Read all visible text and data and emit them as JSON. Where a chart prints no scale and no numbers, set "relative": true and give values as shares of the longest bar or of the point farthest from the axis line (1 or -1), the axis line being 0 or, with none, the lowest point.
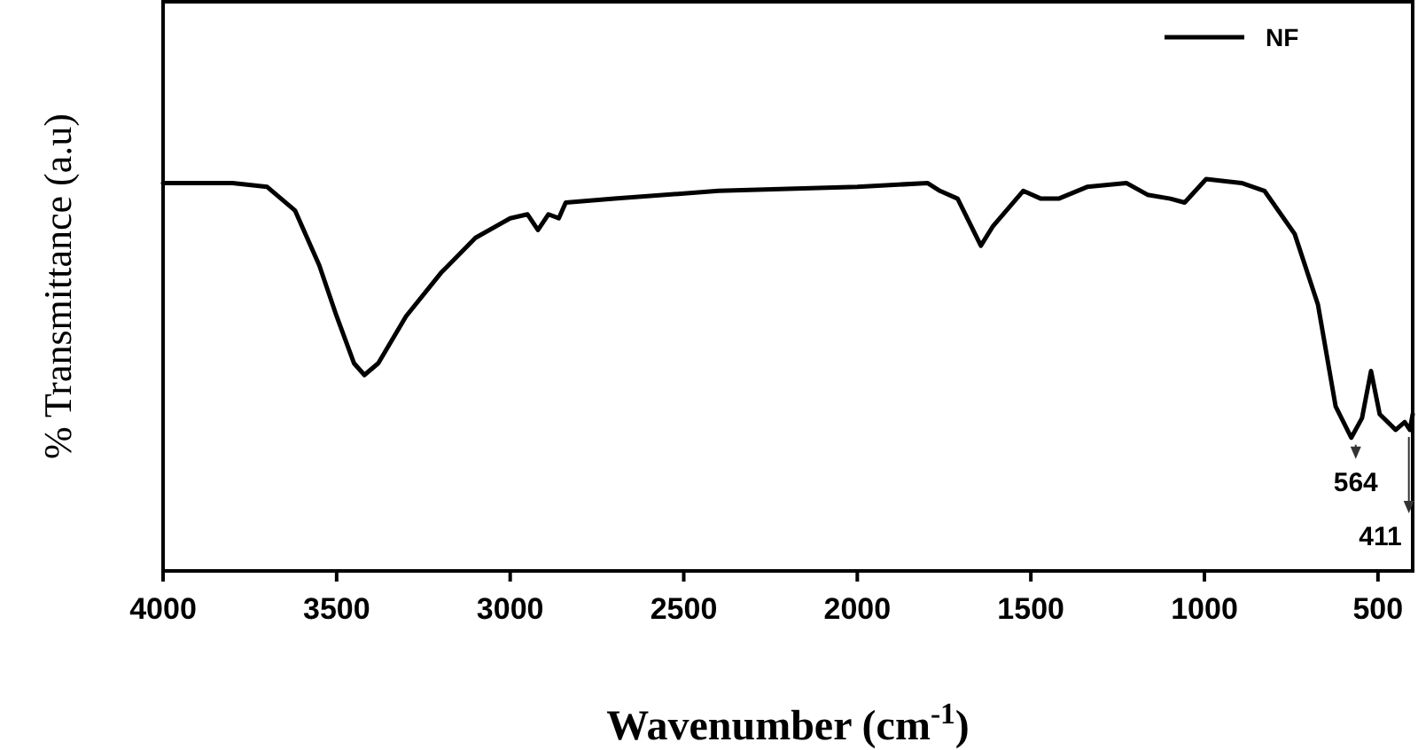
{
  "chart_data": {
    "type": "line",
    "relative": true,
    "xlabel": "Wavenumber (cm$^{-1}$)",
    "ylabel": "% Transmittance (a.u)",
    "xlim": [
      4000,
      400
    ],
    "xticks": [
      4000,
      3500,
      3000,
      2500,
      2000,
      1500,
      1000,
      500
    ],
    "legend": "top right",
    "grid": false,
    "marker": "none",
    "line_style": "solid",
    "x": [
      4000,
      3800,
      3700,
      3620,
      3550,
      3500,
      3450,
      3420,
      3380,
      3300,
      3200,
      3100,
      3000,
      2950,
      2920,
      2890,
      2860,
      2840,
      2700,
      2400,
      2000,
      1798,
      1762,
      1711,
      1644,
      1609,
      1522,
      1471,
      1420,
      1338,
      1225,
      1164,
      1098,
      1057,
      995,
      893,
      827,
      740,
      673,
      622,
      577,
      546,
      520,
      495,
      449,
      423,
      408,
      400
    ],
    "series": [
      {
        "name": "NF",
        "color": "#000000",
        "values": [
          0.99,
          0.99,
          0.98,
          0.92,
          0.78,
          0.65,
          0.53,
          0.5,
          0.53,
          0.65,
          0.76,
          0.85,
          0.9,
          0.91,
          0.87,
          0.91,
          0.9,
          0.94,
          0.95,
          0.97,
          0.98,
          0.99,
          0.97,
          0.95,
          0.83,
          0.88,
          0.97,
          0.95,
          0.95,
          0.98,
          0.99,
          0.96,
          0.95,
          0.94,
          1.0,
          0.99,
          0.97,
          0.86,
          0.68,
          0.42,
          0.34,
          0.39,
          0.51,
          0.4,
          0.36,
          0.38,
          0.36,
          0.4
        ]
      }
    ],
    "annotations": [
      {
        "text": "564",
        "x": 564,
        "y": 0.34
      },
      {
        "text": "411",
        "x": 411,
        "y": 0.36
      }
    ]
  }
}
